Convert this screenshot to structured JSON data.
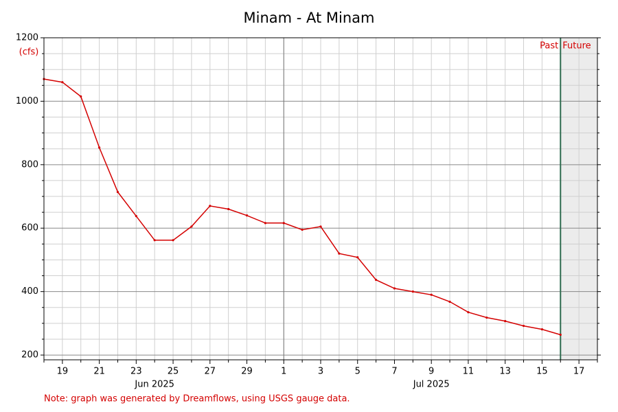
{
  "chart_data": {
    "type": "line",
    "title": "Minam - At Minam",
    "y_label": "(cfs)",
    "note": "Note: graph was generated by Dreamflows, using USGS gauge data.",
    "color": "#d40000",
    "x": [
      "2025-06-18",
      "2025-06-19",
      "2025-06-20",
      "2025-06-21",
      "2025-06-22",
      "2025-06-23",
      "2025-06-24",
      "2025-06-25",
      "2025-06-26",
      "2025-06-27",
      "2025-06-28",
      "2025-06-29",
      "2025-06-30",
      "2025-07-01",
      "2025-07-02",
      "2025-07-03",
      "2025-07-04",
      "2025-07-05",
      "2025-07-06",
      "2025-07-07",
      "2025-07-08",
      "2025-07-09",
      "2025-07-10",
      "2025-07-11",
      "2025-07-12",
      "2025-07-13",
      "2025-07-14",
      "2025-07-15",
      "2025-07-16"
    ],
    "values": [
      1070,
      1060,
      1015,
      854,
      714,
      638,
      562,
      562,
      605,
      670,
      660,
      640,
      616,
      616,
      595,
      605,
      520,
      508,
      437,
      410,
      400,
      390,
      368,
      335,
      318,
      307,
      292,
      281,
      264
    ],
    "xlim": [
      "2025-06-18",
      "2025-07-18"
    ],
    "xticks": [
      {
        "value": "2025-06-18",
        "label": null
      },
      {
        "value": "2025-06-19",
        "label": "19"
      },
      {
        "value": "2025-06-20",
        "label": null
      },
      {
        "value": "2025-06-21",
        "label": "21"
      },
      {
        "value": "2025-06-22",
        "label": null
      },
      {
        "value": "2025-06-23",
        "label": "23"
      },
      {
        "value": "2025-06-24",
        "label": null
      },
      {
        "value": "2025-06-25",
        "label": "25"
      },
      {
        "value": "2025-06-26",
        "label": null
      },
      {
        "value": "2025-06-27",
        "label": "27"
      },
      {
        "value": "2025-06-28",
        "label": null
      },
      {
        "value": "2025-06-29",
        "label": "29"
      },
      {
        "value": "2025-06-30",
        "label": null
      },
      {
        "value": "2025-07-01",
        "label": "1"
      },
      {
        "value": "2025-07-02",
        "label": null
      },
      {
        "value": "2025-07-03",
        "label": "3"
      },
      {
        "value": "2025-07-04",
        "label": null
      },
      {
        "value": "2025-07-05",
        "label": "5"
      },
      {
        "value": "2025-07-06",
        "label": null
      },
      {
        "value": "2025-07-07",
        "label": "7"
      },
      {
        "value": "2025-07-08",
        "label": null
      },
      {
        "value": "2025-07-09",
        "label": "9"
      },
      {
        "value": "2025-07-10",
        "label": null
      },
      {
        "value": "2025-07-11",
        "label": "11"
      },
      {
        "value": "2025-07-12",
        "label": null
      },
      {
        "value": "2025-07-13",
        "label": "13"
      },
      {
        "value": "2025-07-14",
        "label": null
      },
      {
        "value": "2025-07-15",
        "label": "15"
      },
      {
        "value": "2025-07-16",
        "label": null
      },
      {
        "value": "2025-07-17",
        "label": "17"
      },
      {
        "value": "2025-07-18",
        "label": null
      }
    ],
    "month_labels": [
      {
        "value": "2025-06-24",
        "label": "Jun 2025"
      },
      {
        "value": "2025-07-09",
        "label": "Jul 2025"
      }
    ],
    "month_start": "2025-07-01",
    "ylim": [
      185,
      1200
    ],
    "yticks": [
      200,
      400,
      600,
      800,
      1000,
      1200
    ],
    "yminorticks": [
      250,
      300,
      350,
      450,
      500,
      550,
      650,
      700,
      750,
      850,
      900,
      950,
      1050,
      1100,
      1150
    ],
    "grid": true,
    "divider": {
      "value": "2025-07-16",
      "past_label": "Past",
      "future_label": "Future"
    }
  }
}
